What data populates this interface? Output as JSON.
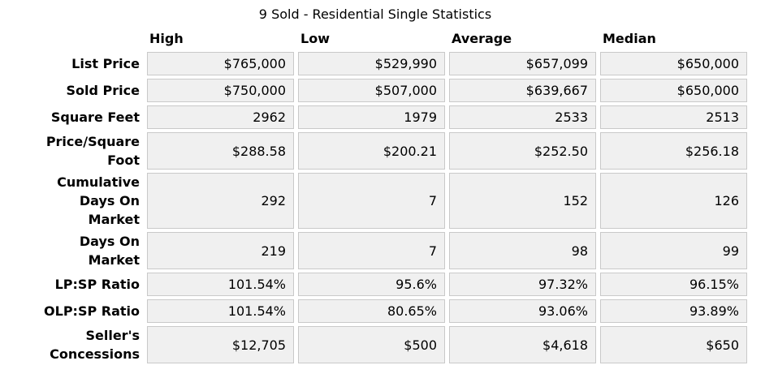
{
  "title": "9 Sold - Residential Single Statistics",
  "columns": [
    "High",
    "Low",
    "Average",
    "Median"
  ],
  "rows": [
    {
      "label": "List Price",
      "values": [
        "$765,000",
        "$529,990",
        "$657,099",
        "$650,000"
      ]
    },
    {
      "label": "Sold Price",
      "values": [
        "$750,000",
        "$507,000",
        "$639,667",
        "$650,000"
      ]
    },
    {
      "label": "Square Feet",
      "values": [
        "2962",
        "1979",
        "2533",
        "2513"
      ]
    },
    {
      "label": "Price/Square\nFoot",
      "values": [
        "$288.58",
        "$200.21",
        "$252.50",
        "$256.18"
      ]
    },
    {
      "label": "Cumulative\nDays On\nMarket",
      "values": [
        "292",
        "7",
        "152",
        "126"
      ]
    },
    {
      "label": "Days On\nMarket",
      "values": [
        "219",
        "7",
        "98",
        "99"
      ]
    },
    {
      "label": "LP:SP Ratio",
      "values": [
        "101.54%",
        "95.6%",
        "97.32%",
        "96.15%"
      ]
    },
    {
      "label": "OLP:SP Ratio",
      "values": [
        "101.54%",
        "80.65%",
        "93.06%",
        "93.89%"
      ]
    },
    {
      "label": "Seller's\nConcessions",
      "values": [
        "$12,705",
        "$500",
        "$4,618",
        "$650"
      ]
    }
  ],
  "colors": {
    "cell_background": "#f0f0f0",
    "cell_border": "#c9c9c9",
    "text": "#000000",
    "page_background": "#ffffff"
  }
}
